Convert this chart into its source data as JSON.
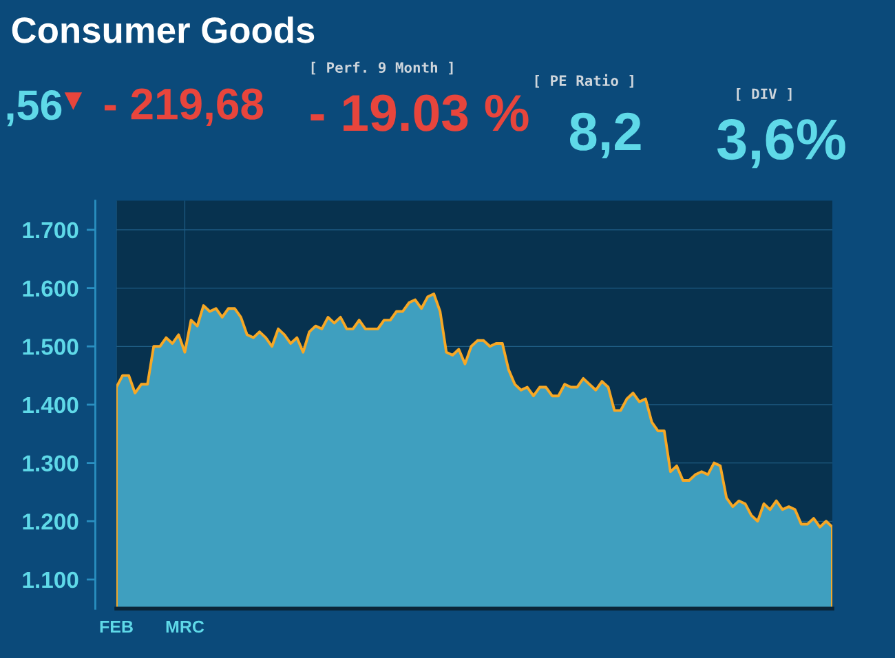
{
  "chart_data": {
    "type": "area",
    "title": "Consumer Goods",
    "annotations": [
      ",56",
      "▼",
      "- 219,68",
      "[ Perf. 9 Month ]",
      "- 19.03 %",
      "[ PE Ratio ]",
      "8,2",
      "[ DIV ]",
      "3,6%"
    ],
    "categories": [
      "FEB",
      null,
      null,
      null,
      null,
      null,
      null,
      null,
      null,
      null,
      null,
      "MRC",
      null,
      null,
      null,
      null,
      null,
      null,
      null,
      null,
      null,
      null,
      null,
      null,
      null,
      null,
      null,
      null,
      null,
      null,
      null,
      null,
      null,
      null,
      null,
      null,
      null,
      null,
      null,
      null,
      null,
      null,
      null,
      null,
      null,
      null,
      null,
      null,
      null,
      null,
      null,
      null,
      null,
      null,
      null,
      null,
      null,
      null,
      null,
      null,
      null,
      null,
      null,
      null,
      null,
      null,
      null,
      null,
      null,
      null,
      null,
      null,
      null,
      null,
      null,
      null,
      null,
      null,
      null,
      null,
      null,
      null,
      null,
      null,
      null,
      null,
      null,
      null,
      null,
      null,
      null,
      null,
      null,
      null,
      null,
      null,
      null,
      null,
      null,
      null,
      null,
      null,
      null,
      null,
      null,
      null,
      null,
      null,
      null,
      null,
      null,
      null,
      null,
      null,
      null,
      null
    ],
    "values": [
      1430,
      1450,
      1450,
      1420,
      1435,
      1435,
      1500,
      1500,
      1515,
      1505,
      1520,
      1490,
      1545,
      1535,
      1570,
      1560,
      1565,
      1550,
      1565,
      1565,
      1550,
      1520,
      1515,
      1525,
      1515,
      1500,
      1530,
      1520,
      1505,
      1515,
      1490,
      1525,
      1535,
      1530,
      1550,
      1540,
      1550,
      1530,
      1530,
      1545,
      1530,
      1530,
      1530,
      1545,
      1545,
      1560,
      1560,
      1575,
      1580,
      1565,
      1585,
      1590,
      1560,
      1490,
      1485,
      1495,
      1470,
      1500,
      1510,
      1510,
      1500,
      1505,
      1505,
      1460,
      1435,
      1425,
      1430,
      1415,
      1430,
      1430,
      1415,
      1415,
      1435,
      1430,
      1430,
      1445,
      1435,
      1425,
      1440,
      1430,
      1390,
      1390,
      1410,
      1420,
      1405,
      1410,
      1370,
      1355,
      1355,
      1285,
      1295,
      1270,
      1270,
      1280,
      1285,
      1280,
      1300,
      1295,
      1240,
      1225,
      1235,
      1230,
      1210,
      1200,
      1230,
      1220,
      1235,
      1220,
      1225,
      1220,
      1195,
      1195,
      1205,
      1190,
      1200,
      1190
    ],
    "color": "#3f9fbf",
    "ylim": [
      1050,
      1750
    ],
    "yticks": [
      {
        "value": 1100,
        "label": "1.100"
      },
      {
        "value": 1200,
        "label": "1.200"
      },
      {
        "value": 1300,
        "label": "1.300"
      },
      {
        "value": 1400,
        "label": "1.400"
      },
      {
        "value": 1500,
        "label": "1.500"
      },
      {
        "value": 1600,
        "label": "1.600"
      },
      {
        "value": 1700,
        "label": "1.700"
      }
    ],
    "grid": true
  }
}
